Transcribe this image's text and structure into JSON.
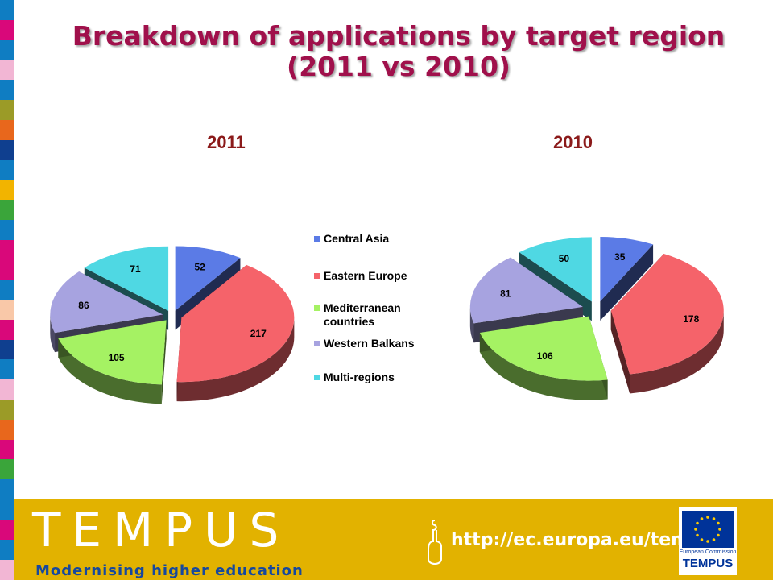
{
  "title_line1": "Breakdown of applications by target region",
  "title_line2": "(2011 vs 2010)",
  "colors": {
    "title": "#a0104b",
    "chart_label": "#8b1a1a",
    "footer_bg": "#e2b200",
    "tagline": "#16489e",
    "ec_blue": "#003399"
  },
  "side_strip_colors": [
    "#0f7dc2",
    "#d9087a",
    "#0f7dc2",
    "#f2b6d4",
    "#0f7dc2",
    "#9b9b27",
    "#e8671c",
    "#0f3f8f",
    "#0f7dc2",
    "#f2b400",
    "#3aa53a",
    "#0f7dc2",
    "#d9087a",
    "#d9087a",
    "#0f7dc2",
    "#f9c8a8",
    "#d9087a",
    "#0f3f8f",
    "#0f7dc2",
    "#f2b6d4",
    "#9b9b27",
    "#e8671c",
    "#d9087a",
    "#3aa53a",
    "#0f7dc2"
  ],
  "chart_data": [
    {
      "type": "pie",
      "title": "2011",
      "series": [
        {
          "categories": [
            "Central Asia",
            "Eastern Europe",
            "Mediterranean countries",
            "Western Balkans",
            "Multi-regions"
          ],
          "values": [
            52,
            217,
            105,
            86,
            71
          ],
          "labels": [
            "52",
            "217",
            "105",
            "86",
            "71"
          ]
        }
      ],
      "colors": [
        "#5b7be6",
        "#f5636a",
        "#a5f263",
        "#a7a3e0",
        "#4fd8e3"
      ],
      "style": "3d-exploded"
    },
    {
      "type": "pie",
      "title": "2010",
      "series": [
        {
          "categories": [
            "Central Asia",
            "Eastern Europe",
            "Mediterranean countries",
            "Western Balkans",
            "Multi-regions"
          ],
          "values": [
            35,
            178,
            106,
            81,
            50
          ],
          "labels": [
            "35",
            "178",
            "106",
            "81",
            "50"
          ]
        }
      ],
      "colors": [
        "#5b7be6",
        "#f5636a",
        "#a5f263",
        "#a7a3e0",
        "#4fd8e3"
      ],
      "style": "3d-exploded"
    }
  ],
  "legend": {
    "placement": "center",
    "items": [
      {
        "label": "Central Asia",
        "color": "#5b7be6"
      },
      {
        "label": "Eastern Europe",
        "color": "#f5636a"
      },
      {
        "label": "Mediterranean countries",
        "color": "#a5f263"
      },
      {
        "label": "Western Balkans",
        "color": "#a7a3e0"
      },
      {
        "label": "Multi-regions",
        "color": "#4fd8e3"
      }
    ]
  },
  "footer": {
    "brand": "TEMPUS",
    "tagline": "Modernising higher education",
    "url": "http://ec.europa.eu/tempus",
    "ec_name": "European Commission",
    "ec_brand": "TEMPUS",
    "icon": "hand-pointer-icon",
    "flag_icon": "eu-flag-icon"
  }
}
